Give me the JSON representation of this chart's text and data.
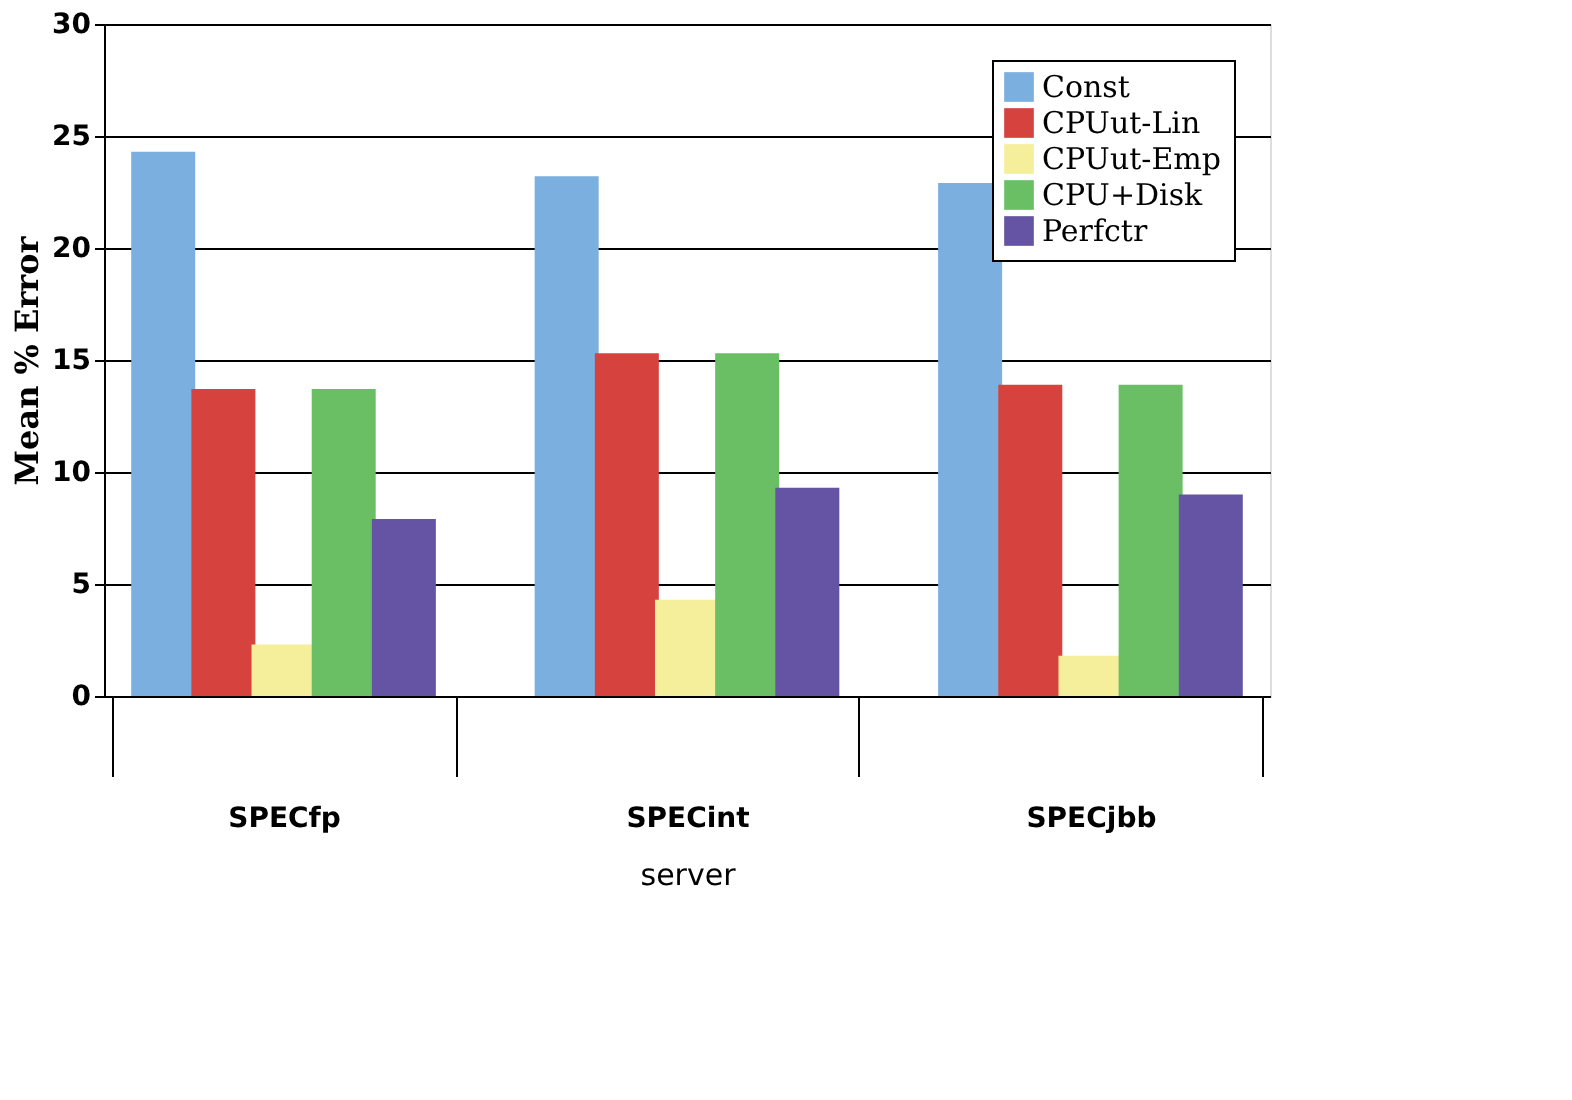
{
  "chart_data": {
    "type": "bar",
    "xlabel": "server",
    "ylabel": "Mean % Error",
    "categories": [
      "SPECfp",
      "SPECint",
      "SPECjbb"
    ],
    "series": [
      {
        "name": "Const",
        "color": "#7aafdf",
        "values": [
          24.3,
          23.2,
          22.9
        ]
      },
      {
        "name": "CPUut-Lin",
        "color": "#d6433e",
        "values": [
          13.7,
          15.3,
          13.9
        ]
      },
      {
        "name": "CPUut-Emp",
        "color": "#f5ee9a",
        "values": [
          2.3,
          4.3,
          1.8
        ]
      },
      {
        "name": "CPU+Disk",
        "color": "#6abf64",
        "values": [
          13.7,
          15.3,
          13.9
        ]
      },
      {
        "name": "Perfctr",
        "color": "#6553a3",
        "values": [
          7.9,
          9.3,
          9.0
        ]
      }
    ],
    "ylim": [
      0,
      30
    ],
    "yticks": [
      0,
      5,
      10,
      15,
      20,
      25,
      30
    ],
    "grid": "y",
    "legend": "top right"
  }
}
